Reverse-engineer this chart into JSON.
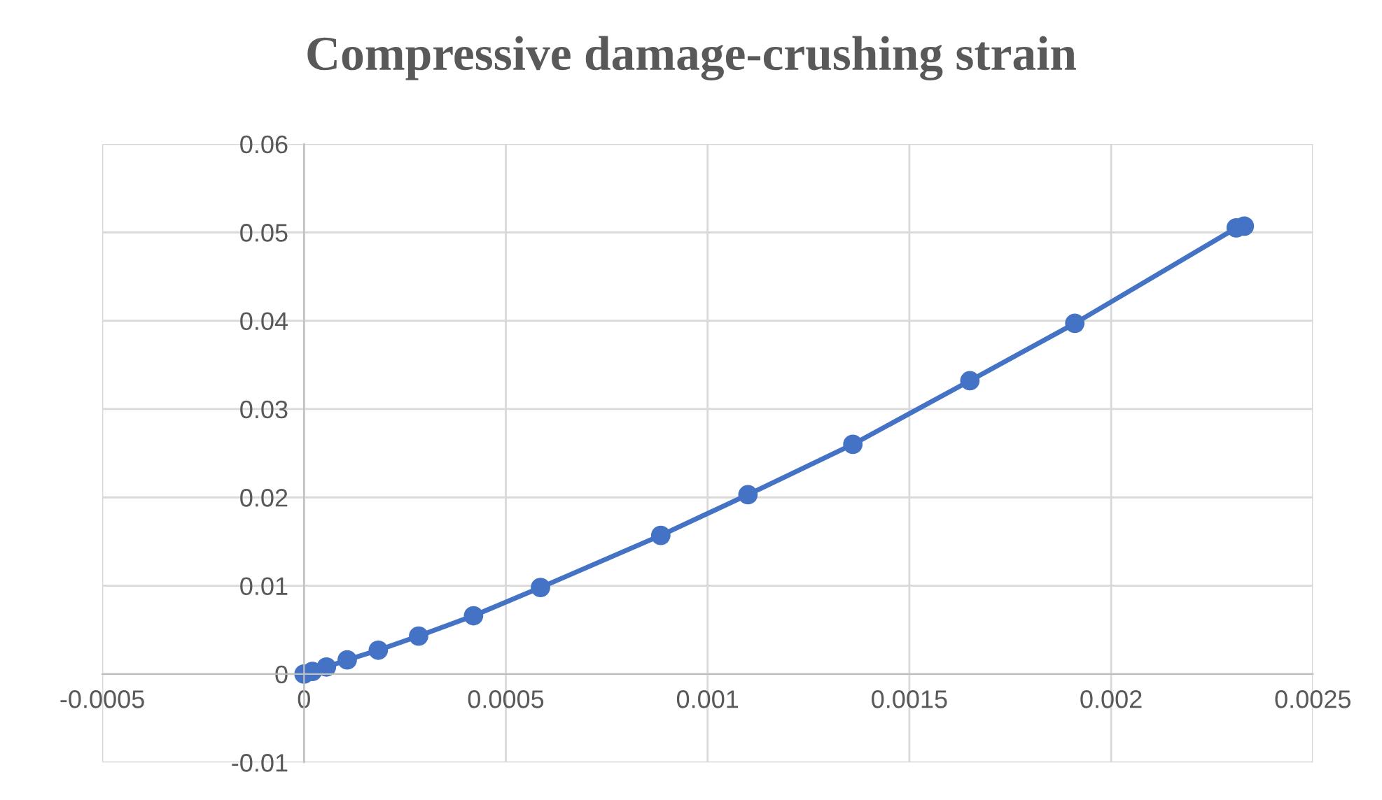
{
  "chart_data": {
    "type": "line",
    "title": "Compressive damage-crushing strain",
    "x": [
      0,
      2.08e-05,
      5.55e-05,
      0.000107,
      0.000184,
      0.000284,
      0.00042,
      0.000586,
      0.000884,
      0.0011,
      0.00136,
      0.00165,
      0.00191,
      0.00231,
      0.00233
    ],
    "series": [
      {
        "color": "#4472c4",
        "values": [
          0,
          0.0003,
          0.0008,
          0.0016,
          0.0027,
          0.0043,
          0.0066,
          0.0098,
          0.0157,
          0.0203,
          0.026,
          0.0332,
          0.0397,
          0.0505,
          0.0507
        ]
      }
    ],
    "xlim": [
      -0.0005,
      0.0025
    ],
    "xticks": [
      -0.0005,
      0,
      0.0005,
      0.001,
      0.0015,
      0.002,
      0.0025
    ],
    "ylim": [
      -0.01,
      0.06
    ],
    "yticks": [
      -0.01,
      0,
      0.01,
      0.02,
      0.03,
      0.04,
      0.05,
      0.06
    ],
    "grid": true,
    "marker": "circle",
    "line_style": "solid"
  }
}
